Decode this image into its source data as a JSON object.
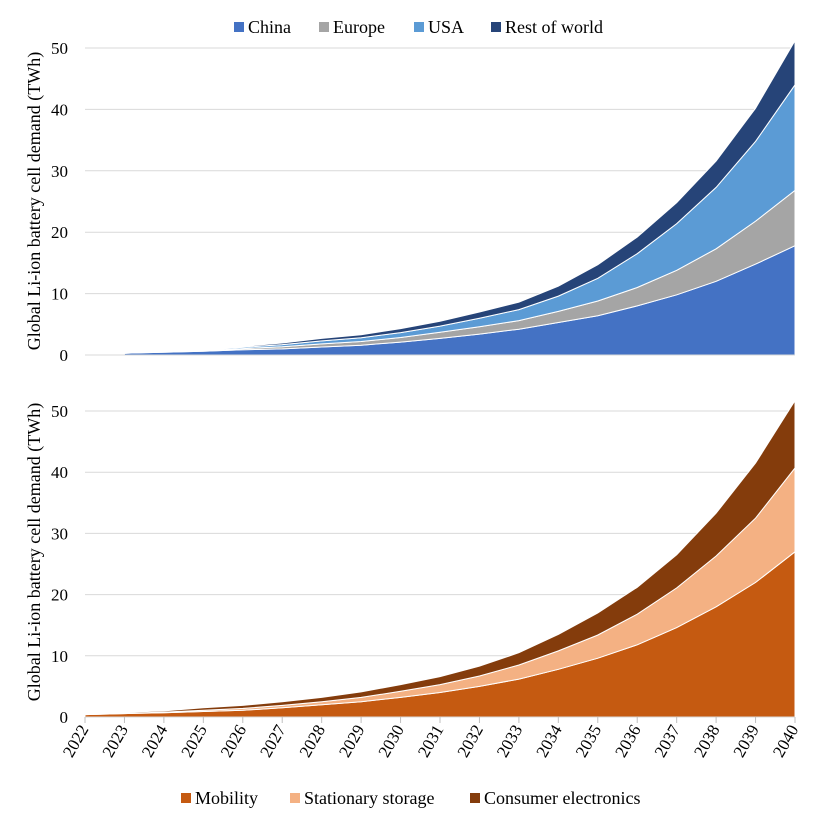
{
  "chart_data": [
    {
      "type": "area",
      "stacked": true,
      "title": "",
      "xlabel": "",
      "ylabel": "Global Li-ion battery cell demand (TWh)",
      "ylim": [
        0,
        50
      ],
      "yticks": [
        0,
        10,
        20,
        30,
        40,
        50
      ],
      "grid": true,
      "legend_position": "top",
      "x": [
        2023,
        2024,
        2025,
        2026,
        2027,
        2028,
        2029,
        2030,
        2031,
        2032,
        2033,
        2034,
        2035,
        2036,
        2037,
        2038,
        2039,
        2040
      ],
      "series": [
        {
          "name": "China",
          "color": "#4472C4",
          "values": [
            0.3,
            0.45,
            0.6,
            0.85,
            1.0,
            1.3,
            1.6,
            2.1,
            2.7,
            3.4,
            4.2,
            5.3,
            6.4,
            8.0,
            9.8,
            12.0,
            14.8,
            17.8
          ]
        },
        {
          "name": "Europe",
          "color": "#A5A5A5",
          "values": [
            0.0,
            0.05,
            0.1,
            0.2,
            0.35,
            0.5,
            0.6,
            0.75,
            1.0,
            1.2,
            1.4,
            1.8,
            2.4,
            3.0,
            4.0,
            5.3,
            7.0,
            9.0
          ]
        },
        {
          "name": "USA",
          "color": "#5B9BD5",
          "values": [
            0.0,
            0.05,
            0.1,
            0.2,
            0.35,
            0.5,
            0.6,
            0.8,
            1.0,
            1.4,
            1.8,
            2.5,
            3.7,
            5.5,
            7.6,
            10.0,
            13.0,
            17.2
          ]
        },
        {
          "name": "Rest of world",
          "color": "#264478",
          "values": [
            0.0,
            0.05,
            0.1,
            0.15,
            0.25,
            0.4,
            0.5,
            0.65,
            0.8,
            1.0,
            1.2,
            1.6,
            2.2,
            2.7,
            3.4,
            4.3,
            5.4,
            7.2
          ]
        }
      ],
      "legend": [
        "China",
        "Europe",
        "USA",
        "Rest of world"
      ]
    },
    {
      "type": "area",
      "stacked": true,
      "title": "",
      "xlabel": "",
      "ylabel": "Global Li-ion battery cell demand (TWh)",
      "ylim": [
        0,
        50
      ],
      "yticks": [
        0,
        10,
        20,
        30,
        40,
        50
      ],
      "grid": true,
      "legend_position": "bottom",
      "x": [
        2022,
        2023,
        2024,
        2025,
        2026,
        2027,
        2028,
        2029,
        2030,
        2031,
        2032,
        2033,
        2034,
        2035,
        2036,
        2037,
        2038,
        2039,
        2040
      ],
      "xtick_labels": [
        "2022",
        "2023",
        "2024",
        "2025",
        "2026",
        "2027",
        "2028",
        "2029",
        "2030",
        "2031",
        "2032",
        "2033",
        "2034",
        "2035",
        "2036",
        "2037",
        "2038",
        "2039",
        "2040"
      ],
      "series": [
        {
          "name": "Mobility",
          "color": "#C55A11",
          "values": [
            0.4,
            0.55,
            0.7,
            0.9,
            1.1,
            1.5,
            2.0,
            2.5,
            3.2,
            4.0,
            5.0,
            6.2,
            7.8,
            9.6,
            11.8,
            14.6,
            18.0,
            22.0,
            27.0
          ]
        },
        {
          "name": "Stationary storage",
          "color": "#F4B183",
          "values": [
            0.0,
            0.05,
            0.1,
            0.2,
            0.3,
            0.4,
            0.5,
            0.7,
            1.0,
            1.3,
            1.7,
            2.3,
            3.0,
            3.8,
            5.0,
            6.5,
            8.3,
            10.5,
            13.7
          ]
        },
        {
          "name": "Consumer electronics",
          "color": "#843C0C",
          "values": [
            0.1,
            0.15,
            0.2,
            0.4,
            0.5,
            0.6,
            0.7,
            0.9,
            1.1,
            1.3,
            1.6,
            2.0,
            2.7,
            3.6,
            4.4,
            5.4,
            7.0,
            9.0,
            11.0
          ]
        }
      ],
      "legend": [
        "Mobility",
        "Stationary storage",
        "Consumer electronics"
      ]
    }
  ]
}
